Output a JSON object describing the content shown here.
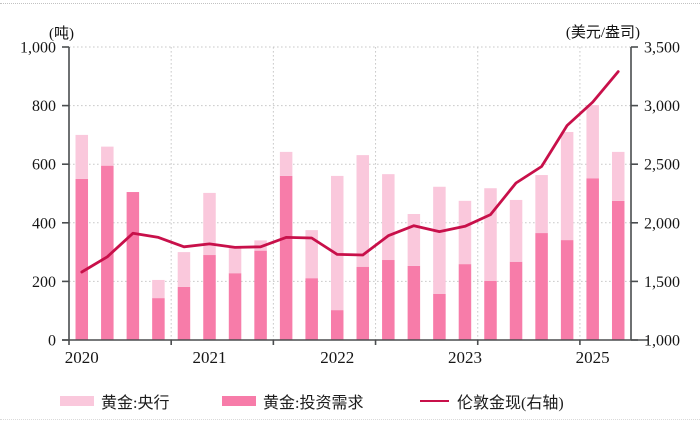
{
  "chart_data": {
    "type": "combo-stacked-bar-line",
    "title": "",
    "categories": [
      "2020Q1",
      "2020Q2",
      "2020Q3",
      "2020Q4",
      "2021Q1",
      "2021Q2",
      "2021Q3",
      "2021Q4",
      "2022Q1",
      "2022Q2",
      "2022Q3",
      "2022Q4",
      "2023Q1",
      "2023Q2",
      "2023Q3",
      "2023Q4",
      "2024Q1",
      "2024Q2",
      "2024Q3",
      "2024Q4",
      "2025Q1",
      "2025Q2"
    ],
    "series": [
      {
        "name": "黄金:央行",
        "type": "bar",
        "stack": "top",
        "axis": "left",
        "color": "#fac8dc",
        "values": [
          150,
          65,
          0,
          62,
          119,
          212,
          93,
          35,
          82,
          164,
          458,
          381,
          293,
          177,
          366,
          216,
          316,
          211,
          198,
          369,
          250,
          167
        ]
      },
      {
        "name": "黄金:投资需求",
        "type": "bar",
        "stack": "bottom",
        "axis": "left",
        "color": "#f77ca9",
        "values": [
          550,
          595,
          505,
          143,
          181,
          290,
          228,
          305,
          560,
          211,
          102,
          250,
          273,
          253,
          157,
          259,
          202,
          267,
          365,
          341,
          552,
          475
        ]
      },
      {
        "name": "伦敦金现(右轴)",
        "type": "line",
        "axis": "right",
        "color": "#c8104a",
        "values": [
          1580,
          1710,
          1910,
          1875,
          1795,
          1820,
          1790,
          1795,
          1875,
          1870,
          1730,
          1725,
          1890,
          1975,
          1925,
          1970,
          2070,
          2340,
          2480,
          2830,
          3030,
          3290
        ]
      }
    ],
    "left_axis": {
      "unit": "(吨)",
      "min": 0,
      "max": 1000,
      "step": 200,
      "tick_labels": [
        "0",
        "200",
        "400",
        "600",
        "800",
        "1,000"
      ]
    },
    "right_axis": {
      "unit": "(美元/盎司)",
      "min": 1000,
      "max": 3500,
      "step": 500,
      "tick_labels": [
        "1,000",
        "1,500",
        "2,000",
        "2,500",
        "3,000",
        "3,500"
      ]
    },
    "x_axis": {
      "tick_labels": [
        {
          "label": "2020",
          "category_index": 0
        },
        {
          "label": "2021",
          "category_index": 5
        },
        {
          "label": "2022",
          "category_index": 10
        },
        {
          "label": "2023",
          "category_index": 15
        },
        {
          "label": "2025",
          "category_index": 20
        }
      ],
      "year_boundary_ticks": 6
    },
    "grid": true,
    "legend_position": "bottom",
    "colors": {
      "axis": "#4a4d4f",
      "gridline": "#c9c9c9",
      "text": "#161616"
    }
  },
  "legend": {
    "central_bank": "黄金:央行",
    "investment": "黄金:投资需求",
    "london_gold": "伦敦金现(右轴)"
  },
  "units": {
    "left": "(吨)",
    "right": "(美元/盎司)"
  }
}
